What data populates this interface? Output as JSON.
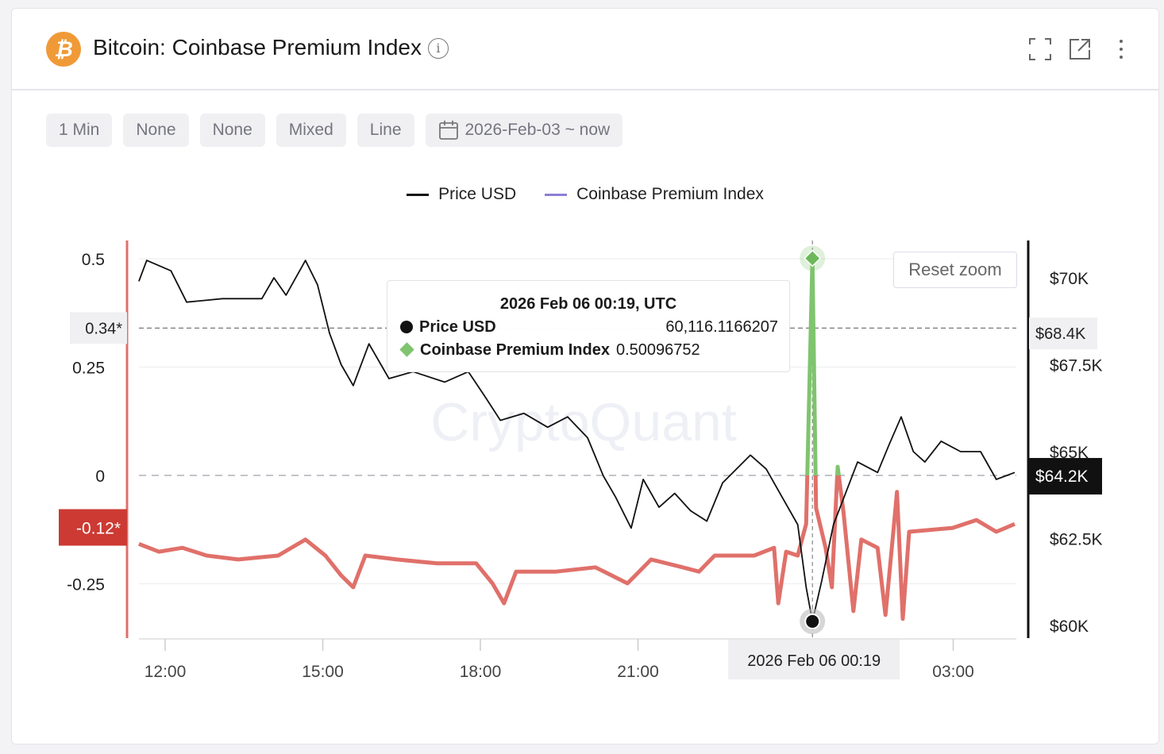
{
  "header": {
    "title": "Bitcoin: Coinbase Premium Index",
    "logo_glyph": "₿",
    "info_glyph": "i",
    "icons": [
      "fullscreen-icon",
      "external-link-icon",
      "more-vertical-icon"
    ]
  },
  "toolbar": {
    "interval": "1 Min",
    "option1": "None",
    "option2": "None",
    "scale": "Mixed",
    "chart_type": "Line",
    "date_range": "2026-Feb-03 ~ now"
  },
  "reset_zoom_label": "Reset zoom",
  "watermark": "CryptoQuant",
  "tooltip": {
    "title": "2026 Feb 06 00:19, UTC",
    "rows": [
      {
        "name": "Price USD",
        "value": "60,116.1166207"
      },
      {
        "name": "Coinbase Premium Index",
        "value": "0.50096752"
      }
    ]
  },
  "colors": {
    "price": "#111111",
    "premium_negative": "#e0706a",
    "premium_positive": "#7fc46e",
    "legend_premium": "#8b7fd6",
    "left_axis": "#e0706a",
    "label_negative_bg": "#cc3a33"
  },
  "chart_data": {
    "type": "line",
    "title": "Bitcoin: Coinbase Premium Index",
    "x_unit": "hours since 2026-02-05 00:00 UTC",
    "x_range": [
      11.5,
      28.17
    ],
    "x_ticks": [
      {
        "value": 12,
        "label": "12:00"
      },
      {
        "value": 15,
        "label": "15:00"
      },
      {
        "value": 18,
        "label": "18:00"
      },
      {
        "value": 21,
        "label": "21:00"
      },
      {
        "value": 27,
        "label": "03:00"
      }
    ],
    "crosshair": {
      "x": 24.32,
      "label": "2026 Feb 06 00:19",
      "price": 60116.1166207,
      "premium": 0.50096752
    },
    "left_axis": {
      "ticks": [
        {
          "value": 0.5,
          "label": "0.5"
        },
        {
          "value": 0.25,
          "label": "0.25"
        },
        {
          "value": 0,
          "label": "0"
        },
        {
          "value": -0.25,
          "label": "-0.25"
        }
      ],
      "markers": [
        {
          "value": 0.34,
          "label": "0.34*"
        },
        {
          "value": -0.12,
          "label": "-0.12*"
        }
      ]
    },
    "right_axis": {
      "ticks": [
        {
          "value": 70000,
          "label": "$70K"
        },
        {
          "value": 67500,
          "label": "$67.5K"
        },
        {
          "value": 65000,
          "label": "$65K"
        },
        {
          "value": 62500,
          "label": "$62.5K"
        },
        {
          "value": 60000,
          "label": "$60K"
        }
      ],
      "markers": [
        {
          "value": 68400,
          "label": "$68.4K"
        },
        {
          "value": 64200,
          "label": "$64.2K"
        }
      ]
    },
    "legend": [
      {
        "name": "Price USD"
      },
      {
        "name": "Coinbase Premium Index"
      }
    ],
    "series": [
      {
        "name": "Price USD",
        "axis": "right",
        "x": [
          11.5,
          11.65,
          12.11,
          12.41,
          13.09,
          13.84,
          14.07,
          14.3,
          14.67,
          14.9,
          15.13,
          15.35,
          15.58,
          15.88,
          16.26,
          16.72,
          17.32,
          17.77,
          18.08,
          18.38,
          18.83,
          19.28,
          19.66,
          20.04,
          20.34,
          20.57,
          20.87,
          21.1,
          21.4,
          21.7,
          22.0,
          22.31,
          22.61,
          23.14,
          23.44,
          23.74,
          24.04,
          24.2,
          24.32,
          24.5,
          24.72,
          24.95,
          25.18,
          25.56,
          25.78,
          26.01,
          26.24,
          26.46,
          26.77,
          27.14,
          27.52,
          27.82,
          28.17
        ],
        "values": [
          69900,
          70500,
          70200,
          69300,
          69400,
          69400,
          70000,
          69500,
          70500,
          69800,
          68400,
          67500,
          66900,
          68100,
          67100,
          67300,
          67000,
          67300,
          66600,
          65900,
          66100,
          65700,
          66000,
          65400,
          64300,
          63700,
          62800,
          64200,
          63400,
          63800,
          63300,
          63000,
          64100,
          64900,
          64500,
          63700,
          62900,
          61100,
          60116,
          61300,
          62900,
          63800,
          64700,
          64400,
          65200,
          66000,
          65000,
          64700,
          65300,
          65000,
          65000,
          64200,
          64400
        ]
      },
      {
        "name": "Coinbase Premium Index",
        "axis": "left",
        "x": [
          11.5,
          11.88,
          12.33,
          12.79,
          13.39,
          14.15,
          14.67,
          15.05,
          15.35,
          15.58,
          15.81,
          16.41,
          17.17,
          17.92,
          18.23,
          18.45,
          18.68,
          19.44,
          20.19,
          20.8,
          21.25,
          21.85,
          22.16,
          22.46,
          23.21,
          23.59,
          23.67,
          23.82,
          24.04,
          24.2,
          24.32,
          24.39,
          24.57,
          24.69,
          24.8,
          24.91,
          25.1,
          25.25,
          25.56,
          25.71,
          25.86,
          25.93,
          26.04,
          26.16,
          26.99,
          27.44,
          27.82,
          28.17
        ],
        "values": [
          -0.158,
          -0.176,
          -0.167,
          -0.185,
          -0.194,
          -0.185,
          -0.148,
          -0.185,
          -0.231,
          -0.258,
          -0.185,
          -0.194,
          -0.203,
          -0.203,
          -0.249,
          -0.295,
          -0.222,
          -0.222,
          -0.212,
          -0.249,
          -0.194,
          -0.212,
          -0.222,
          -0.185,
          -0.185,
          -0.167,
          -0.295,
          -0.176,
          -0.185,
          -0.112,
          0.501,
          -0.075,
          -0.167,
          -0.258,
          0.02,
          -0.084,
          -0.313,
          -0.148,
          -0.167,
          -0.322,
          -0.13,
          -0.038,
          -0.331,
          -0.13,
          -0.121,
          -0.103,
          -0.13,
          -0.112
        ]
      }
    ]
  }
}
